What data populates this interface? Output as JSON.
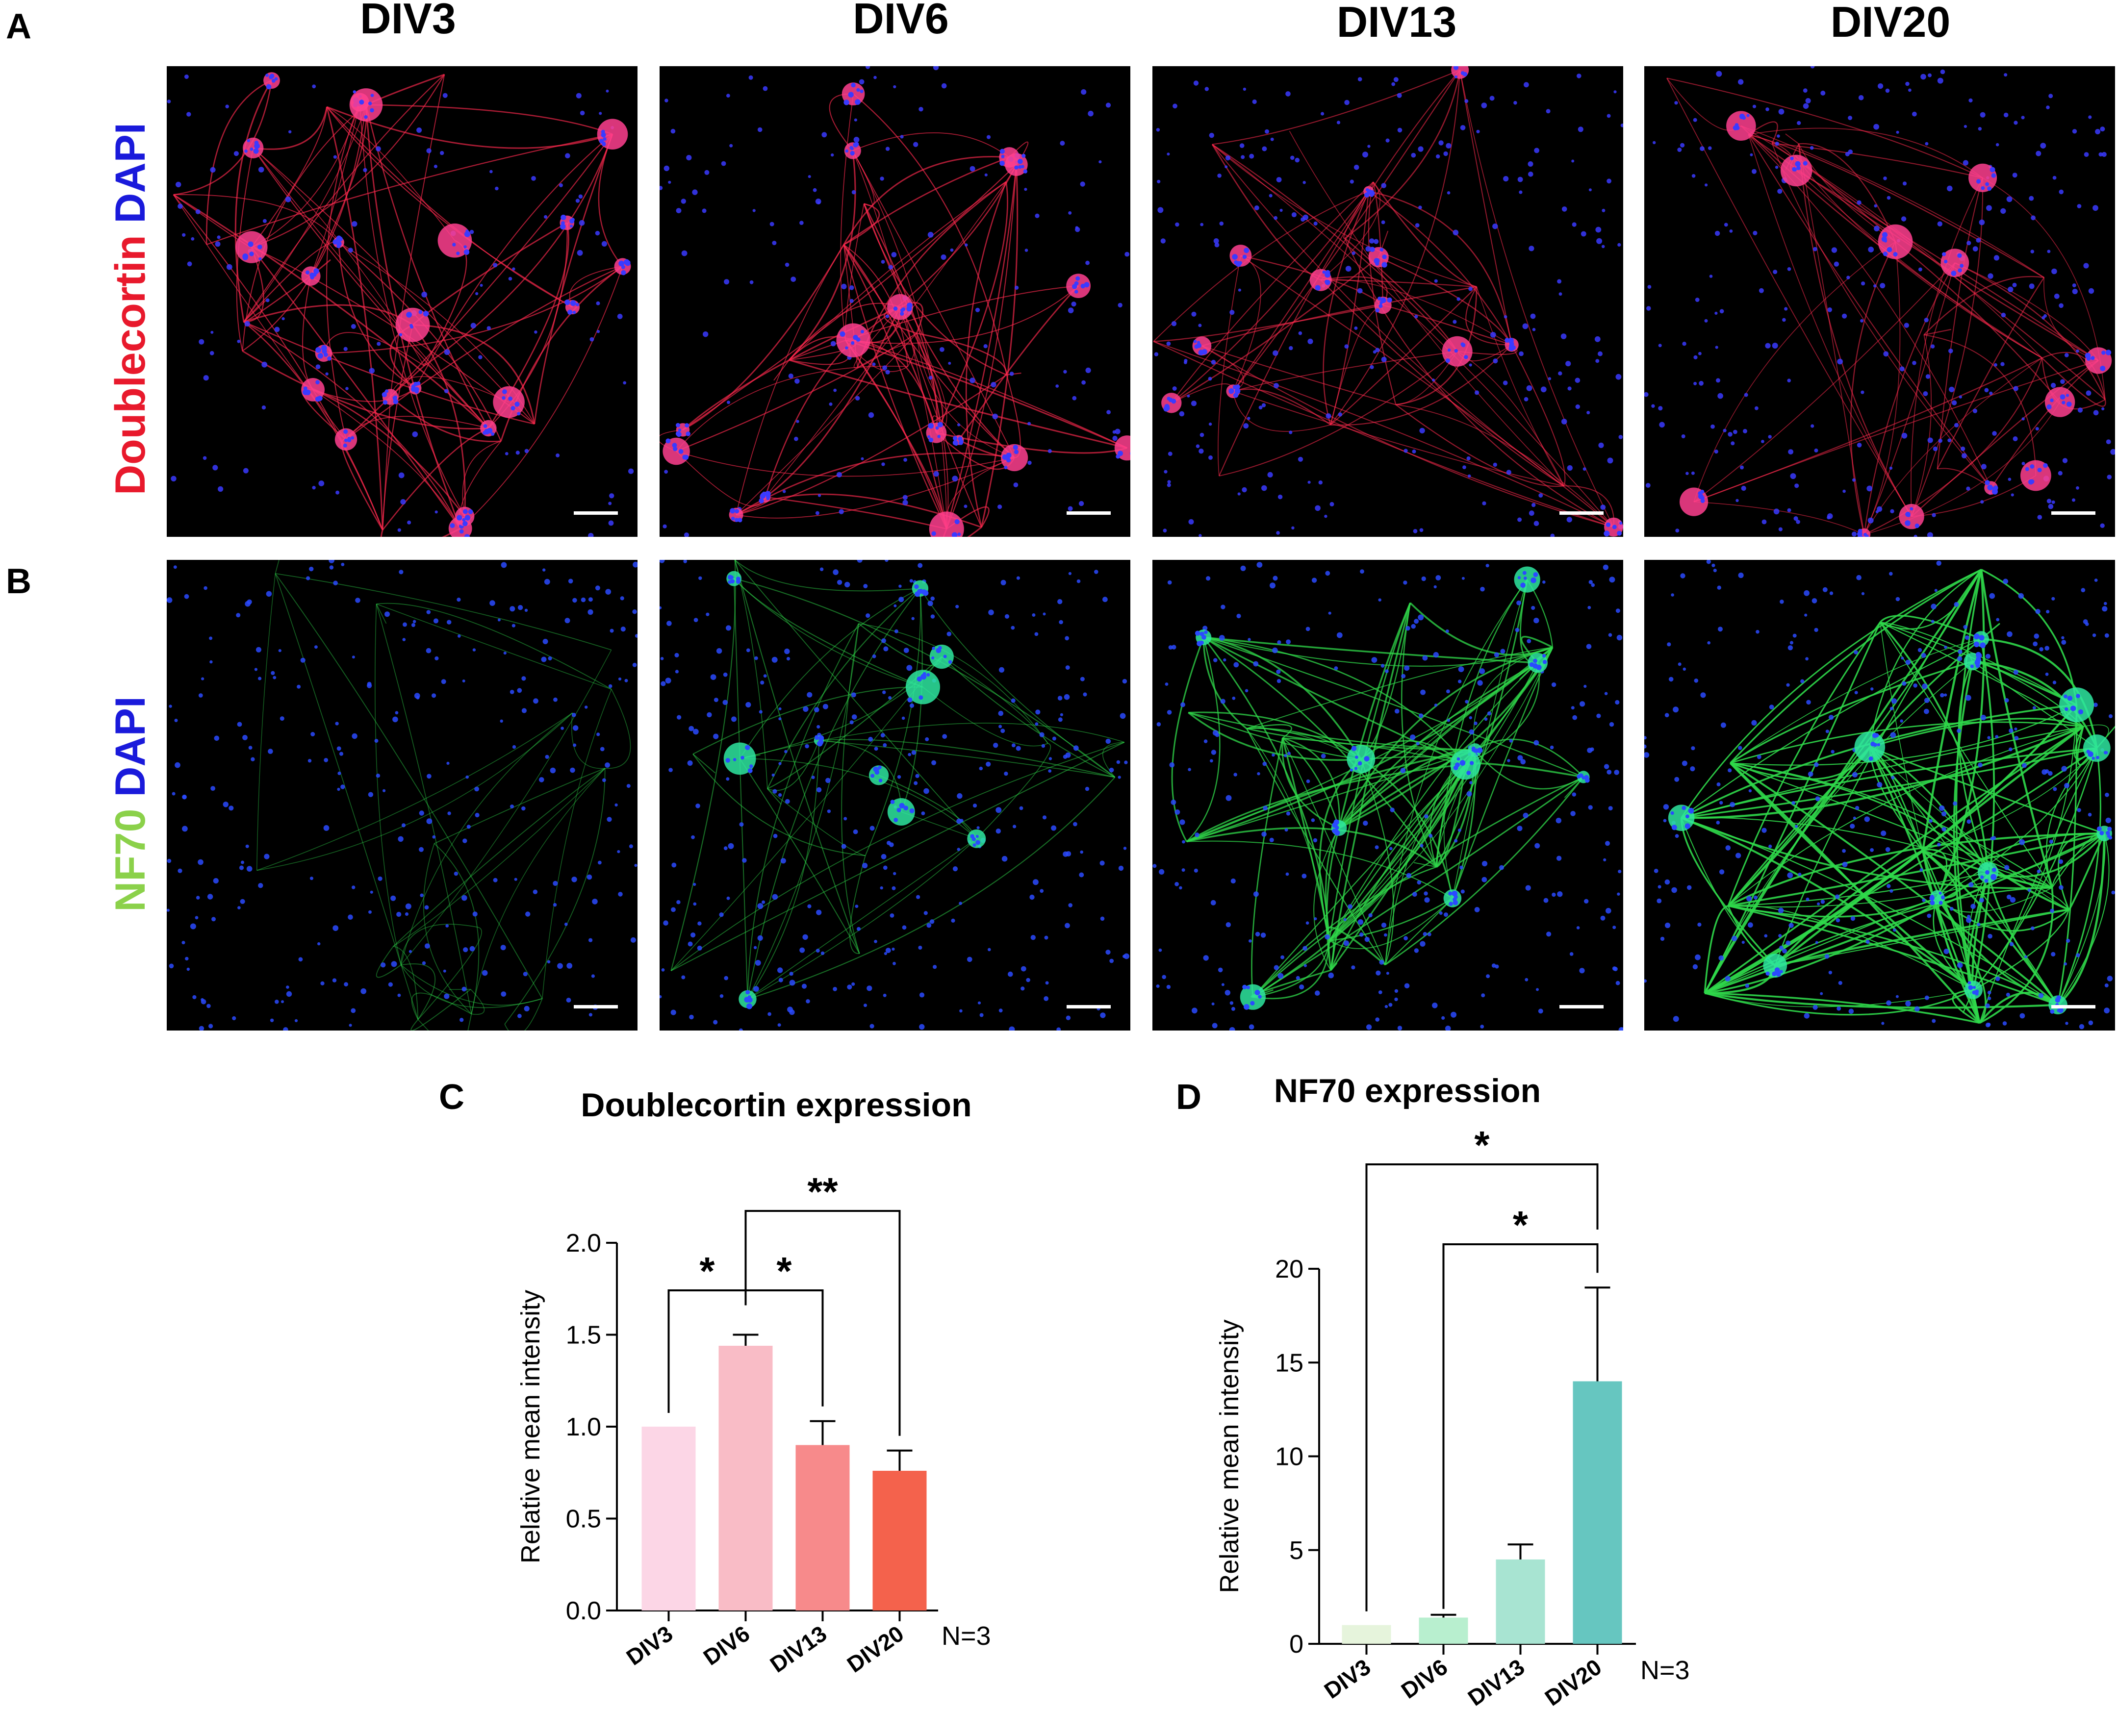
{
  "panel_letters": {
    "a": "A",
    "b": "B",
    "c": "C",
    "d": "D"
  },
  "columns": [
    "DIV3",
    "DIV6",
    "DIV13",
    "DIV20"
  ],
  "row_labels": {
    "row_a": [
      {
        "text": "Doublecortin",
        "color": "#e8192c"
      },
      {
        "text": " DAPI",
        "color": "#1a1adb"
      }
    ],
    "row_b": [
      {
        "text": "NF70",
        "color": "#8bd14a"
      },
      {
        "text": " DAPI",
        "color": "#1a1adb"
      }
    ]
  },
  "micrograph_colors": {
    "row_a": {
      "fiber": "#ff2a4e",
      "soma": "#ff3f8f",
      "nuclei": "#3a3aff",
      "background": "#000000"
    },
    "row_b": {
      "fiber": "#2fd84a",
      "soma": "#2ee6a0",
      "nuclei": "#2a4aff",
      "background": "#000000"
    }
  },
  "chart_data": [
    {
      "type": "bar",
      "title": "Doublecortin expression",
      "ylabel": "Relative mean intensity",
      "xlabel": "",
      "categories": [
        "DIV3",
        "DIV6",
        "DIV13",
        "DIV20"
      ],
      "values": [
        1.0,
        1.44,
        0.9,
        0.76
      ],
      "errors": [
        0,
        0.06,
        0.13,
        0.11
      ],
      "colors": [
        "#fcd6e6",
        "#f9bcc6",
        "#f78a8b",
        "#f4624c"
      ],
      "ylim": [
        0,
        2.0
      ],
      "yticks": [
        "0.0",
        "0.5",
        "1.0",
        "1.5",
        "2.0"
      ],
      "note": "N=3",
      "significance": [
        {
          "from": 0,
          "to": 1,
          "label": "*"
        },
        {
          "from": 1,
          "to": 2,
          "label": "*"
        },
        {
          "from": 1,
          "to": 3,
          "label": "**"
        }
      ]
    },
    {
      "type": "bar",
      "title": "NF70 expression",
      "ylabel": "Relative mean intensity",
      "xlabel": "",
      "categories": [
        "DIV3",
        "DIV6",
        "DIV13",
        "DIV20"
      ],
      "values": [
        1.0,
        1.4,
        4.5,
        14.0
      ],
      "errors": [
        0,
        0.15,
        0.8,
        5.0
      ],
      "colors": [
        "#e6f4dc",
        "#b8efcf",
        "#a8e4d2",
        "#66c6c0"
      ],
      "ylim": [
        0,
        20
      ],
      "yticks": [
        "0",
        "5",
        "10",
        "15",
        "20"
      ],
      "note": "N=3",
      "significance": [
        {
          "from": 1,
          "to": 3,
          "label": "*"
        },
        {
          "from": 0,
          "to": 3,
          "label": "*"
        }
      ]
    }
  ]
}
